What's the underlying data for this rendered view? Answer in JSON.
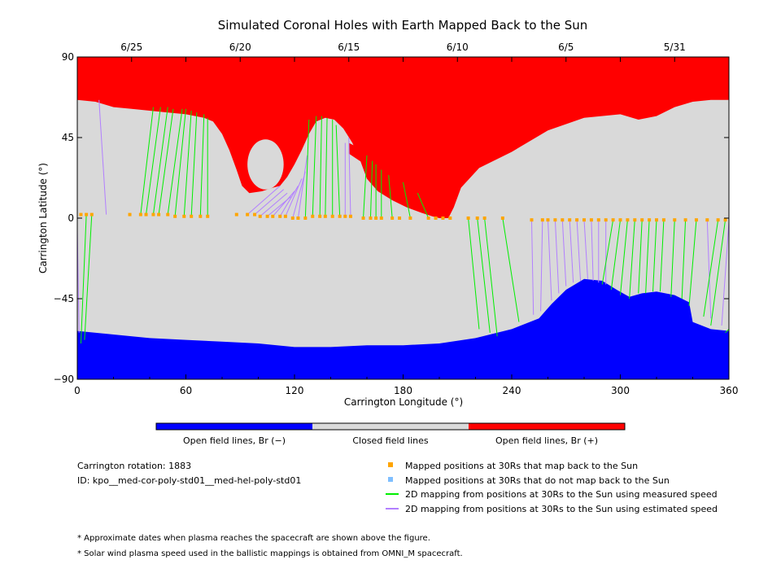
{
  "chart_data": {
    "type": "scatter",
    "title": "Simulated Coronal Holes with Earth Mapped Back to the Sun",
    "xlabel": "Carrington Longitude (°)",
    "ylabel": "Carrington Latitude (°)",
    "xlim": [
      0,
      360
    ],
    "ylim": [
      -90,
      90
    ],
    "x_ticks": [
      0,
      60,
      120,
      180,
      240,
      300,
      360
    ],
    "y_ticks": [
      90,
      45,
      0,
      -45,
      -90
    ],
    "y_tick_labels": [
      "90",
      "45",
      "0",
      "−45",
      "−90"
    ],
    "top_axis_dates": [
      {
        "label": "6/25",
        "lon": 30
      },
      {
        "label": "6/20",
        "lon": 90
      },
      {
        "label": "6/15",
        "lon": 150
      },
      {
        "label": "6/10",
        "lon": 210
      },
      {
        "label": "6/5",
        "lon": 270
      },
      {
        "label": "5/31",
        "lon": 330
      }
    ],
    "colors": {
      "open_negative": "#0000ff",
      "closed": "#d9d9d9",
      "open_positive": "#ff0000",
      "mapped_point": "#ffa500",
      "unmapped_point": "#7fbfff",
      "measured_line": "#00ee00",
      "estimated_line": "#b27fff"
    },
    "north_hole_boundary": [
      [
        0,
        66
      ],
      [
        10,
        65
      ],
      [
        20,
        62
      ],
      [
        30,
        61
      ],
      [
        40,
        60
      ],
      [
        50,
        59
      ],
      [
        60,
        58
      ],
      [
        70,
        56
      ],
      [
        75,
        54
      ],
      [
        80,
        47
      ],
      [
        84,
        38
      ],
      [
        88,
        27
      ],
      [
        91,
        18
      ],
      [
        95,
        14
      ],
      [
        102,
        15
      ],
      [
        108,
        17
      ],
      [
        112,
        18
      ],
      [
        116,
        23
      ],
      [
        120,
        30
      ],
      [
        124,
        38
      ],
      [
        128,
        47
      ],
      [
        132,
        54
      ],
      [
        137,
        56
      ],
      [
        142,
        55
      ],
      [
        147,
        50
      ],
      [
        152,
        42
      ],
      [
        156,
        33
      ],
      [
        160,
        22
      ],
      [
        166,
        15
      ],
      [
        174,
        10
      ],
      [
        182,
        6
      ],
      [
        190,
        3
      ],
      [
        196,
        1
      ],
      [
        200,
        0
      ],
      [
        205,
        0
      ],
      [
        208,
        6
      ],
      [
        212,
        17
      ],
      [
        222,
        28
      ],
      [
        240,
        37
      ],
      [
        260,
        49
      ],
      [
        280,
        56
      ],
      [
        300,
        58
      ],
      [
        310,
        55
      ],
      [
        320,
        57
      ],
      [
        330,
        62
      ],
      [
        340,
        65
      ],
      [
        350,
        66
      ],
      [
        360,
        66
      ]
    ],
    "inner_hole": {
      "center": [
        104,
        30
      ],
      "radius_lon": 10,
      "radius_lat": 14
    },
    "north_strip": [
      [
        150,
        42
      ],
      [
        158,
        38
      ],
      [
        168,
        30
      ],
      [
        178,
        24
      ],
      [
        186,
        18
      ],
      [
        194,
        10
      ],
      [
        200,
        4
      ],
      [
        205,
        0
      ],
      [
        200,
        2
      ],
      [
        192,
        8
      ],
      [
        184,
        14
      ],
      [
        174,
        22
      ],
      [
        164,
        28
      ],
      [
        156,
        32
      ],
      [
        150,
        36
      ]
    ],
    "south_hole_boundary": [
      [
        0,
        -63
      ],
      [
        20,
        -65
      ],
      [
        40,
        -67
      ],
      [
        60,
        -68
      ],
      [
        80,
        -69
      ],
      [
        100,
        -70
      ],
      [
        120,
        -72
      ],
      [
        140,
        -72
      ],
      [
        160,
        -71
      ],
      [
        180,
        -71
      ],
      [
        200,
        -70
      ],
      [
        220,
        -67
      ],
      [
        240,
        -62
      ],
      [
        255,
        -56
      ],
      [
        262,
        -48
      ],
      [
        270,
        -40
      ],
      [
        280,
        -34
      ],
      [
        290,
        -35
      ],
      [
        298,
        -40
      ],
      [
        305,
        -44
      ],
      [
        312,
        -42
      ],
      [
        320,
        -41
      ],
      [
        330,
        -43
      ],
      [
        338,
        -47
      ],
      [
        340,
        -58
      ],
      [
        350,
        -62
      ],
      [
        360,
        -63
      ]
    ],
    "mapped_positions": {
      "name": "Mapped positions at 30Rs that map back to the Sun",
      "x": [
        2,
        5,
        8,
        29,
        35,
        38,
        42,
        45,
        50,
        54,
        59,
        63,
        68,
        72,
        88,
        94,
        98,
        101,
        105,
        108,
        112,
        115,
        119,
        122,
        126,
        130,
        134,
        137,
        141,
        145,
        148,
        151,
        158,
        162,
        165,
        168,
        174,
        178,
        184,
        194,
        198,
        202,
        206,
        216,
        221,
        225,
        235,
        251,
        257,
        260,
        264,
        268,
        272,
        276,
        280,
        284,
        288,
        292,
        296,
        300,
        304,
        308,
        312,
        316,
        320,
        324,
        330,
        336,
        342,
        348,
        354,
        358
      ],
      "y": [
        2,
        2,
        2,
        2,
        2,
        2,
        2,
        2,
        2,
        1,
        1,
        1,
        1,
        1,
        2,
        2,
        2,
        1,
        1,
        1,
        1,
        1,
        0,
        0,
        0,
        1,
        1,
        1,
        1,
        1,
        1,
        1,
        0,
        0,
        0,
        0,
        0,
        0,
        0,
        0,
        0,
        0,
        0,
        0,
        0,
        0,
        0,
        -1,
        -1,
        -1,
        -1,
        -1,
        -1,
        -1,
        -1,
        -1,
        -1,
        -1,
        -1,
        -1,
        -1,
        -1,
        -1,
        -1,
        -1,
        -1,
        -1,
        -1,
        -1,
        -1,
        -1,
        -1
      ]
    },
    "measured_mappings": {
      "name": "2D mapping from positions at 30Rs to the Sun using measured speed",
      "lines": [
        [
          5,
          2,
          2,
          -70
        ],
        [
          8,
          2,
          4,
          -68
        ],
        [
          35,
          2,
          42,
          62
        ],
        [
          38,
          2,
          46,
          62
        ],
        [
          42,
          2,
          50,
          62
        ],
        [
          45,
          2,
          53,
          61
        ],
        [
          50,
          2,
          58,
          61
        ],
        [
          54,
          1,
          60,
          61
        ],
        [
          59,
          1,
          63,
          60
        ],
        [
          63,
          1,
          66,
          59
        ],
        [
          68,
          1,
          70,
          58
        ],
        [
          72,
          1,
          72,
          56
        ],
        [
          126,
          0,
          128,
          55
        ],
        [
          130,
          1,
          132,
          57
        ],
        [
          134,
          1,
          135,
          57
        ],
        [
          137,
          1,
          138,
          56
        ],
        [
          141,
          1,
          141,
          55
        ],
        [
          145,
          1,
          143,
          52
        ],
        [
          158,
          0,
          160,
          35
        ],
        [
          162,
          0,
          163,
          32
        ],
        [
          165,
          0,
          165,
          30
        ],
        [
          168,
          0,
          168,
          27
        ],
        [
          174,
          0,
          172,
          24
        ],
        [
          184,
          0,
          180,
          20
        ],
        [
          194,
          0,
          188,
          14
        ],
        [
          216,
          0,
          222,
          -62
        ],
        [
          221,
          0,
          228,
          -64
        ],
        [
          225,
          0,
          232,
          -66
        ],
        [
          235,
          0,
          244,
          -58
        ],
        [
          296,
          -1,
          290,
          -37
        ],
        [
          300,
          -1,
          295,
          -40
        ],
        [
          304,
          -1,
          300,
          -43
        ],
        [
          308,
          -1,
          305,
          -45
        ],
        [
          312,
          -1,
          310,
          -42
        ],
        [
          316,
          -1,
          314,
          -42
        ],
        [
          320,
          -1,
          318,
          -41
        ],
        [
          324,
          -1,
          322,
          -41
        ],
        [
          330,
          -1,
          328,
          -44
        ],
        [
          336,
          -1,
          334,
          -45
        ],
        [
          342,
          -1,
          338,
          -49
        ],
        [
          354,
          -1,
          346,
          -55
        ],
        [
          358,
          -1,
          350,
          -60
        ],
        [
          360,
          -62,
          358,
          -64
        ]
      ]
    },
    "estimated_mappings": {
      "name": "2D mapping from positions at 30Rs to the Sun using estimated speed",
      "lines": [
        [
          0,
          -6,
          1,
          -64
        ],
        [
          12,
          66,
          16,
          2
        ],
        [
          94,
          2,
          112,
          18
        ],
        [
          98,
          2,
          114,
          16
        ],
        [
          101,
          1,
          116,
          14
        ],
        [
          105,
          1,
          118,
          12
        ],
        [
          108,
          1,
          120,
          15
        ],
        [
          112,
          1,
          122,
          18
        ],
        [
          115,
          1,
          124,
          22
        ],
        [
          119,
          0,
          126,
          26
        ],
        [
          122,
          0,
          127,
          35
        ],
        [
          148,
          1,
          148,
          42
        ],
        [
          151,
          1,
          150,
          45
        ],
        [
          251,
          -1,
          252,
          -54
        ],
        [
          257,
          -1,
          256,
          -52
        ],
        [
          260,
          -1,
          262,
          -46
        ],
        [
          264,
          -1,
          266,
          -42
        ],
        [
          268,
          -1,
          270,
          -38
        ],
        [
          272,
          -1,
          274,
          -36
        ],
        [
          276,
          -1,
          278,
          -35
        ],
        [
          280,
          -1,
          282,
          -34
        ],
        [
          284,
          -1,
          285,
          -35
        ],
        [
          288,
          -1,
          288,
          -36
        ],
        [
          292,
          -1,
          292,
          -37
        ],
        [
          348,
          -1,
          350,
          -56
        ],
        [
          360,
          -2,
          356,
          -60
        ]
      ]
    }
  },
  "colorbar": {
    "negative_label": "Open field lines, Br (−)",
    "closed_label": "Closed field lines",
    "positive_label": "Open field lines, Br (+)"
  },
  "info": {
    "rotation": "Carrington rotation: 1883",
    "id": "ID: kpo__med-cor-poly-std01__med-hel-poly-std01"
  },
  "legend": {
    "mapped": "Mapped positions at 30Rs that map back to the Sun",
    "unmapped": "Mapped positions at 30Rs that do not map back to the Sun",
    "measured": "2D mapping from positions at 30Rs to the Sun using measured speed",
    "estimated": "2D mapping from positions at 30Rs to the Sun using estimated speed"
  },
  "footnotes": {
    "dates": "* Approximate dates when plasma reaches the spacecraft are shown above the figure.",
    "source": "* Solar wind plasma speed used in the ballistic mappings is obtained from OMNI_M spacecraft."
  }
}
